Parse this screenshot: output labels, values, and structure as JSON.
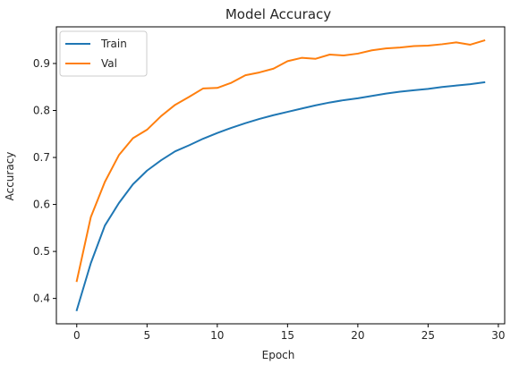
{
  "chart_data": {
    "type": "line",
    "title": "Model Accuracy",
    "xlabel": "Epoch",
    "ylabel": "Accuracy",
    "xlim": [
      -1.45,
      30.45
    ],
    "ylim": [
      0.346,
      0.978
    ],
    "xticks": [
      0,
      5,
      10,
      15,
      20,
      25,
      30
    ],
    "yticks": [
      0.4,
      0.5,
      0.6,
      0.7,
      0.8,
      0.9
    ],
    "grid": false,
    "legend_position": "top-left",
    "x": [
      0,
      1,
      2,
      3,
      4,
      5,
      6,
      7,
      8,
      9,
      10,
      11,
      12,
      13,
      14,
      15,
      16,
      17,
      18,
      19,
      20,
      21,
      22,
      23,
      24,
      25,
      26,
      27,
      28,
      29
    ],
    "series": [
      {
        "name": "Train",
        "color": "#1f77b4",
        "values": [
          0.375,
          0.475,
          0.555,
          0.603,
          0.643,
          0.672,
          0.694,
          0.713,
          0.726,
          0.74,
          0.752,
          0.763,
          0.773,
          0.782,
          0.79,
          0.797,
          0.804,
          0.811,
          0.817,
          0.822,
          0.826,
          0.831,
          0.836,
          0.84,
          0.843,
          0.846,
          0.85,
          0.853,
          0.856,
          0.86
        ]
      },
      {
        "name": "Val",
        "color": "#ff7f0e",
        "values": [
          0.437,
          0.573,
          0.648,
          0.705,
          0.741,
          0.759,
          0.788,
          0.812,
          0.829,
          0.847,
          0.848,
          0.859,
          0.875,
          0.881,
          0.889,
          0.905,
          0.912,
          0.91,
          0.919,
          0.917,
          0.921,
          0.928,
          0.932,
          0.934,
          0.937,
          0.938,
          0.941,
          0.945,
          0.94,
          0.949
        ]
      }
    ]
  }
}
